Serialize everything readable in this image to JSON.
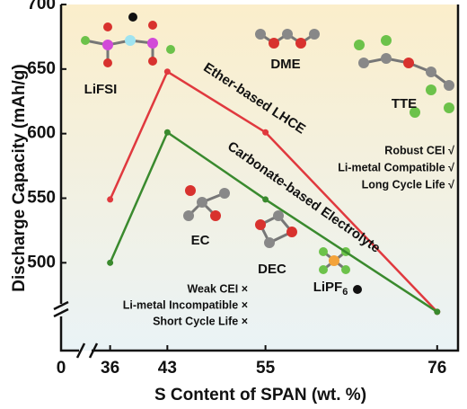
{
  "chart_data": {
    "type": "line",
    "x_label": "S Content of SPAN (wt. %)",
    "y_label": "Discharge Capacity (mAh/g)",
    "xlim": [
      30,
      78
    ],
    "xticks": [
      0,
      36,
      43,
      55,
      76
    ],
    "ylim": [
      432,
      700
    ],
    "yticks": [
      500,
      550,
      600,
      650,
      700
    ],
    "axis_break": true,
    "series": [
      {
        "name": "Ether-based LHCE",
        "color": "#e0393e",
        "x": [
          36,
          43,
          55,
          76
        ],
        "values": [
          549,
          648,
          601,
          462
        ]
      },
      {
        "name": "Carbonate-based Electrolyte",
        "color": "#3a8a2e",
        "x": [
          36,
          43,
          55,
          76
        ],
        "values": [
          500,
          601,
          549,
          462
        ]
      }
    ],
    "molecules": [
      {
        "text": "LiFSI"
      },
      {
        "text": "DME"
      },
      {
        "text": "TTE"
      },
      {
        "text": "EC"
      },
      {
        "text": "DEC"
      },
      {
        "text": "LiPF",
        "subscript": "6"
      }
    ],
    "good_notes": [
      "Robust CEI √",
      "Li-metal Compatible √",
      "Long Cycle Life √"
    ],
    "bad_notes": [
      "Weak CEI ×",
      "Li-metal Incompatible ×",
      "Short Cycle Life ×"
    ]
  }
}
